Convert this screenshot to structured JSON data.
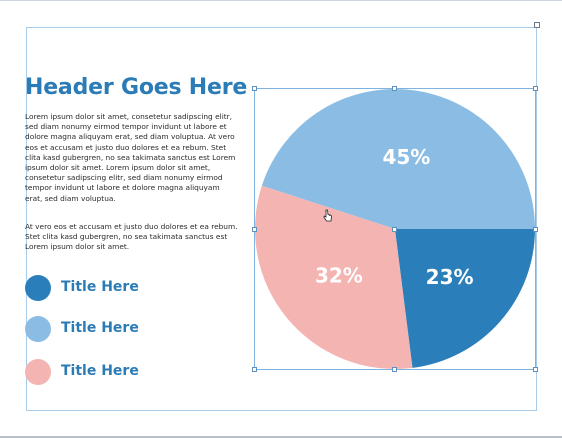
{
  "header": {
    "title": "Header Goes Here"
  },
  "body_text": {
    "paragraph_1": "Lorem ipsum dolor sit amet, consetetur sadipscing elitr, sed diam nonumy eirmod tempor invidunt ut labore et dolore magna aliquyam erat, sed diam voluptua. At vero eos et accusam et justo duo dolores et ea rebum. Stet clita kasd gubergren, no sea takimata sanctus est Lorem ipsum dolor sit amet. Lorem ipsum dolor sit amet, consetetur sadipscing elitr, sed diam nonumy eirmod tempor invidunt ut labore et dolore magna aliquyam erat, sed diam voluptua.",
    "paragraph_2": "At vero eos et accusam et justo duo dolores et ea rebum. Stet clita kasd gubergren, no sea takimata sanctus est Lorem ipsum dolor sit amet."
  },
  "legend": [
    {
      "label": "Title Here",
      "color": "#2a7fba"
    },
    {
      "label": "Title Here",
      "color": "#8bbde4"
    },
    {
      "label": "Title Here",
      "color": "#f4b4b2"
    }
  ],
  "colors": {
    "accent": "#2b7bb6",
    "selection": "#7fb4e0"
  },
  "chart_data": {
    "type": "pie",
    "start_angle_deg": 0,
    "slices": [
      {
        "label": "45%",
        "value": 45,
        "color": "#8bbde4"
      },
      {
        "label": "32%",
        "value": 32,
        "color": "#f4b4b2"
      },
      {
        "label": "23%",
        "value": 23,
        "color": "#2a7fba"
      }
    ],
    "selected": true
  }
}
